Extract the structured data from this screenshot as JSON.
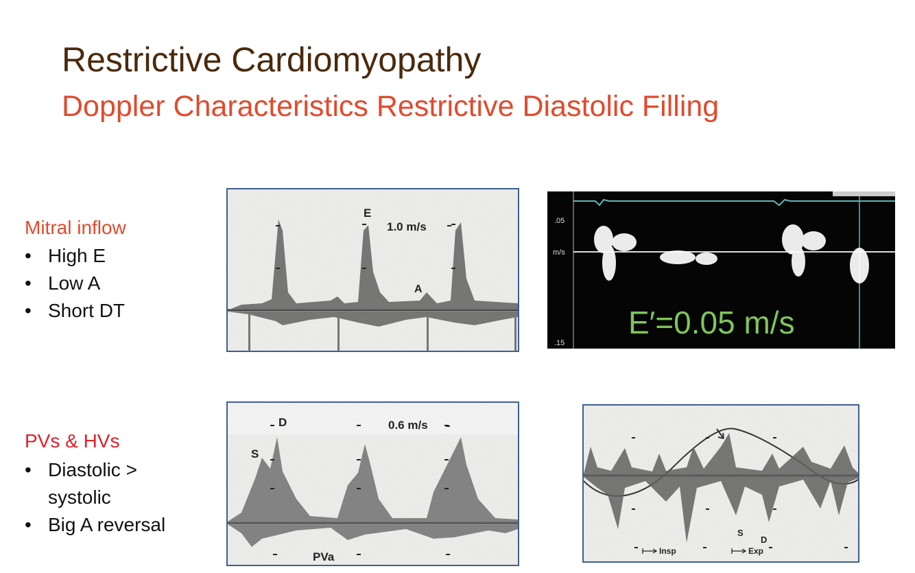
{
  "title": "Restrictive Cardiomyopathy",
  "subtitle": "Doppler Characteristics Restrictive Diastolic Filling",
  "colors": {
    "title": "#4a2a0c",
    "subtitle": "#e24a2c",
    "section1": "#e24a2c",
    "section2": "#e0202a",
    "panel_border": "#3c5f8f",
    "tissue_label": "#7fc65a"
  },
  "mitral": {
    "heading": "Mitral inflow",
    "bullets": [
      "High E",
      "Low A",
      "Short DT"
    ]
  },
  "veins": {
    "heading": "PVs & HVs",
    "bullets": [
      "Diastolic > systolic",
      "Big A reversal"
    ]
  },
  "panel_mitral": {
    "label_e": "E",
    "label_a": "A",
    "velocity": "1.0 m/s"
  },
  "panel_tissue": {
    "scale_top": ".05",
    "scale_units": "m/s",
    "scale_bottom": ".15",
    "label": "E′=0.05 m/s"
  },
  "panel_pulmonary": {
    "label_d": "D",
    "label_s": "S",
    "velocity": "0.6 m/s",
    "label_pva": "PVa"
  },
  "panel_hepatic": {
    "label_s": "S",
    "label_d": "D",
    "insp": "Insp",
    "exp": "Exp"
  },
  "bullet_symbol": "•"
}
